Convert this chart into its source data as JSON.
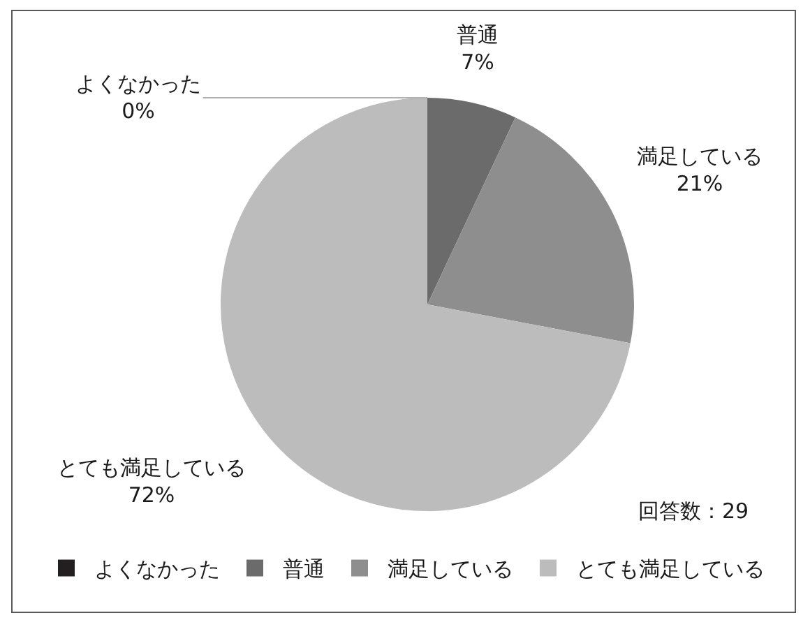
{
  "chart_data": {
    "type": "pie",
    "categories": [
      "よくなかった",
      "普通",
      "満足している",
      "とても満足している"
    ],
    "values": [
      0,
      7,
      21,
      72
    ],
    "value_labels": [
      "0%",
      "7%",
      "21%",
      "72%"
    ],
    "colors": [
      "#231f20",
      "#6b6b6b",
      "#8e8e8e",
      "#bcbcbc"
    ],
    "legend": "bottom",
    "annotations": [
      "回答数：29"
    ]
  }
}
